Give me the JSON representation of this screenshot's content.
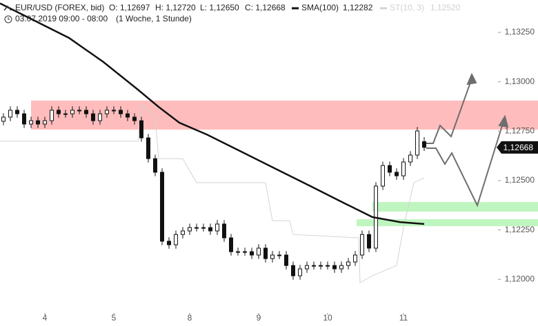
{
  "chart_data": {
    "type": "candlestick",
    "header": {
      "symbol": "EUR/USD (FOREX, bid)",
      "open": "O: 1,12697",
      "high": "H: 1,12720",
      "low": "L: 1,12650",
      "close": "C: 1,12668",
      "period": "03.07.2019 09:00 - 08:00",
      "interval": "(1 Woche, 1 Stunde)"
    },
    "xlim": [
      -0.5,
      71.5
    ],
    "ylim": [
      1.11844,
      1.13414
    ],
    "xticks": [
      {
        "value": 6,
        "label": "4"
      },
      {
        "value": 16,
        "label": "5"
      },
      {
        "value": 27,
        "label": "8"
      },
      {
        "value": 37,
        "label": "9"
      },
      {
        "value": 47,
        "label": "10"
      },
      {
        "value": 58,
        "label": "11"
      }
    ],
    "yticks": [
      {
        "value": 1.1325,
        "label": "1,13250"
      },
      {
        "value": 1.13,
        "label": "1,13000"
      },
      {
        "value": 1.1275,
        "label": "1,12750"
      },
      {
        "value": 1.125,
        "label": "1,12500"
      },
      {
        "value": 1.1225,
        "label": "1,12250"
      },
      {
        "value": 1.12,
        "label": "1,12000"
      }
    ],
    "candles": {
      "open": [
        1.128,
        1.12821,
        1.12856,
        1.12838,
        1.12786,
        1.12803,
        1.12786,
        1.12803,
        1.12856,
        1.12838,
        1.12838,
        1.12856,
        1.12856,
        1.12838,
        1.12803,
        1.12838,
        1.12856,
        1.12856,
        1.12838,
        1.12821,
        1.12803,
        1.12716,
        1.12611,
        1.12542,
        1.12193,
        1.12175,
        1.12227,
        1.12245,
        1.12262,
        1.12262,
        1.12262,
        1.12245,
        1.1228,
        1.1221,
        1.1214,
        1.1214,
        1.1214,
        1.12123,
        1.12158,
        1.12105,
        1.12123,
        1.12123,
        1.1207,
        1.12018,
        1.12053,
        1.1207,
        1.1207,
        1.1207,
        1.1207,
        1.12053,
        1.1207,
        1.12088,
        1.12123,
        1.12227,
        1.12158,
        1.12472,
        1.12576,
        1.12542,
        1.12524,
        1.12594,
        1.12629,
        1.12697
      ],
      "high": [
        1.12841,
        1.12876,
        1.12876,
        1.12858,
        1.12823,
        1.12823,
        1.12823,
        1.12876,
        1.12876,
        1.12858,
        1.12876,
        1.12876,
        1.12876,
        1.12858,
        1.12858,
        1.12876,
        1.12876,
        1.12876,
        1.12858,
        1.12841,
        1.12823,
        1.12736,
        1.12631,
        1.12562,
        1.12213,
        1.12247,
        1.12265,
        1.12282,
        1.12282,
        1.12282,
        1.12282,
        1.123,
        1.123,
        1.1223,
        1.1216,
        1.1216,
        1.1216,
        1.12178,
        1.12178,
        1.12143,
        1.12143,
        1.12143,
        1.1209,
        1.12073,
        1.1209,
        1.1209,
        1.1209,
        1.1209,
        1.1209,
        1.1209,
        1.12108,
        1.12143,
        1.12247,
        1.12247,
        1.12492,
        1.12596,
        1.12596,
        1.12562,
        1.12614,
        1.12649,
        1.12771,
        1.1272
      ],
      "low": [
        1.1278,
        1.12801,
        1.12818,
        1.12766,
        1.12766,
        1.12766,
        1.12766,
        1.12783,
        1.12818,
        1.12818,
        1.12818,
        1.12836,
        1.12818,
        1.12783,
        1.12783,
        1.12818,
        1.12836,
        1.12818,
        1.12801,
        1.12783,
        1.12696,
        1.12591,
        1.12522,
        1.12173,
        1.12155,
        1.12155,
        1.12207,
        1.12225,
        1.12242,
        1.12242,
        1.12225,
        1.12225,
        1.1219,
        1.1212,
        1.1212,
        1.1212,
        1.12103,
        1.12103,
        1.12085,
        1.12085,
        1.12103,
        1.1205,
        1.11998,
        1.11998,
        1.12033,
        1.1205,
        1.1205,
        1.1205,
        1.12033,
        1.12033,
        1.1205,
        1.12068,
        1.12103,
        1.12138,
        1.12138,
        1.12452,
        1.12522,
        1.12504,
        1.12504,
        1.12574,
        1.12609,
        1.1265
      ],
      "close": [
        1.12821,
        1.12856,
        1.12838,
        1.12786,
        1.12803,
        1.12786,
        1.12803,
        1.12856,
        1.12838,
        1.12838,
        1.12856,
        1.12856,
        1.12838,
        1.12803,
        1.12838,
        1.12856,
        1.12856,
        1.12838,
        1.12821,
        1.12803,
        1.12716,
        1.12611,
        1.12542,
        1.12193,
        1.12175,
        1.12227,
        1.12245,
        1.12262,
        1.12262,
        1.12262,
        1.12245,
        1.1228,
        1.1221,
        1.1214,
        1.1214,
        1.1214,
        1.12123,
        1.12158,
        1.12105,
        1.12123,
        1.12123,
        1.1207,
        1.12018,
        1.12053,
        1.1207,
        1.1207,
        1.1207,
        1.1207,
        1.12053,
        1.1207,
        1.12088,
        1.12123,
        1.12227,
        1.12158,
        1.12472,
        1.12576,
        1.12542,
        1.12524,
        1.12594,
        1.12629,
        1.12751,
        1.12668
      ]
    },
    "lines": [
      {
        "name": "SMA(100)",
        "value_label": "1,12282",
        "color": "#111111",
        "x": [
          -0.5,
          9.5,
          14.5,
          19.5,
          22.5,
          25.5,
          29.5,
          34.5,
          39.5,
          44.5,
          49.5,
          53.5,
          57.5,
          61
        ],
        "values": [
          1.13397,
          1.13222,
          1.131,
          1.1296,
          1.12873,
          1.12793,
          1.12733,
          1.12646,
          1.12559,
          1.12472,
          1.12384,
          1.12315,
          1.1229,
          1.1228
        ]
      },
      {
        "name": "ST(10, 3)",
        "value_label": "1,12520",
        "color": "#d4d4d4",
        "x": [
          -0.5,
          19.5,
          20,
          22,
          22.5,
          26,
          28,
          38,
          39,
          41.5,
          42,
          51.5,
          51.7,
          53.5,
          57,
          58,
          59.5,
          61
        ],
        "values": [
          1.12699,
          1.12699,
          1.12891,
          1.12821,
          1.12611,
          1.12611,
          1.12489,
          1.12489,
          1.12297,
          1.12297,
          1.12227,
          1.1221,
          1.11983,
          1.12018,
          1.1207,
          1.12262,
          1.12489,
          1.12514
        ]
      }
    ],
    "zones": [
      {
        "y": [
          1.12758,
          1.12905
        ],
        "x0": 4,
        "color": "#ffbcbc"
      },
      {
        "y": [
          1.12343,
          1.12391
        ],
        "x0": 53.5,
        "color": "#bff5bf"
      },
      {
        "y": [
          1.12269,
          1.12304
        ],
        "x0": 51.2,
        "color": "#bff5bf"
      }
    ],
    "last_price": {
      "value": 1.12668,
      "label": "1,12668"
    }
  }
}
